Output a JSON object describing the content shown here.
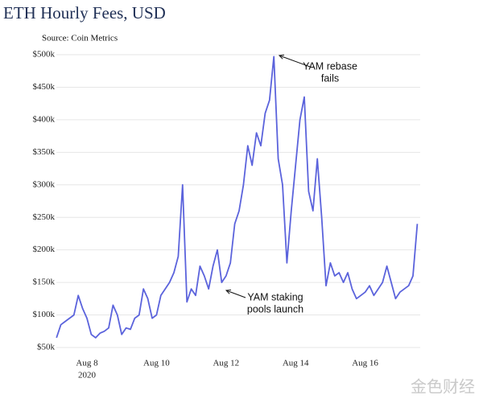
{
  "chart_data": {
    "type": "line",
    "title": "ETH Hourly Fees, USD",
    "subtitle": "Source: Coin Metrics",
    "categories": [
      null,
      null,
      null,
      null,
      null,
      null,
      null,
      "Aug 8",
      null,
      null,
      null,
      null,
      null,
      null,
      null,
      null,
      null,
      null,
      null,
      null,
      null,
      null,
      null,
      "Aug 10",
      null,
      null,
      null,
      null,
      null,
      null,
      null,
      null,
      null,
      null,
      null,
      null,
      null,
      null,
      null,
      "Aug 12",
      null,
      null,
      null,
      null,
      null,
      null,
      null,
      null,
      null,
      null,
      null,
      null,
      null,
      null,
      null,
      "Aug 14",
      null,
      null,
      null,
      null,
      null,
      null,
      null,
      null,
      null,
      null,
      null,
      null,
      null,
      null,
      null,
      "Aug 16",
      null,
      null,
      null,
      null,
      null,
      null,
      null,
      null,
      null,
      null,
      null,
      null
    ],
    "year_label": "2020",
    "values": [
      65000,
      85000,
      90000,
      95000,
      100000,
      130000,
      110000,
      95000,
      70000,
      65000,
      72000,
      75000,
      80000,
      115000,
      100000,
      70000,
      80000,
      78000,
      95000,
      100000,
      140000,
      125000,
      95000,
      100000,
      130000,
      140000,
      150000,
      165000,
      190000,
      300000,
      120000,
      140000,
      130000,
      175000,
      160000,
      140000,
      175000,
      200000,
      150000,
      160000,
      180000,
      240000,
      260000,
      300000,
      360000,
      330000,
      380000,
      360000,
      410000,
      430000,
      497000,
      340000,
      300000,
      180000,
      260000,
      330000,
      400000,
      435000,
      290000,
      260000,
      340000,
      250000,
      145000,
      180000,
      160000,
      165000,
      150000,
      165000,
      140000,
      125000,
      130000,
      135000,
      145000,
      130000,
      140000,
      150000,
      175000,
      150000,
      125000,
      135000,
      140000,
      145000,
      160000,
      240000
    ],
    "color": "#5b63dc",
    "ylim": [
      50000,
      500000
    ],
    "yticks": [
      {
        "value": 50000,
        "label": "$50k"
      },
      {
        "value": 100000,
        "label": "$100k"
      },
      {
        "value": 150000,
        "label": "$150k"
      },
      {
        "value": 200000,
        "label": "$200k"
      },
      {
        "value": 250000,
        "label": "$250k"
      },
      {
        "value": 300000,
        "label": "$300k"
      },
      {
        "value": 350000,
        "label": "$350k"
      },
      {
        "value": 400000,
        "label": "$400k"
      },
      {
        "value": 450000,
        "label": "$450k"
      },
      {
        "value": 500000,
        "label": "$500k"
      }
    ],
    "grid": true,
    "annotations": [
      {
        "lines": [
          "YAM rebase",
          "fails"
        ],
        "index": 50
      },
      {
        "lines": [
          "YAM staking",
          "pools launch"
        ],
        "index": 38
      }
    ],
    "watermark": "金色财经"
  }
}
